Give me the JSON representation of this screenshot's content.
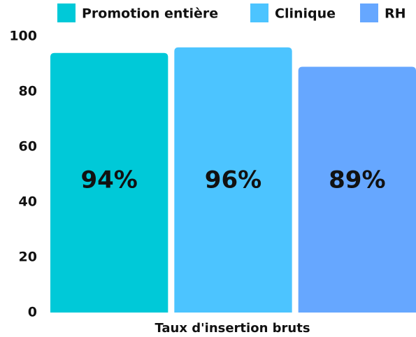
{
  "chart_data": {
    "type": "bar",
    "categories": [
      "Taux d'insertion bruts"
    ],
    "series": [
      {
        "name": "Promotion entière",
        "color": "#00c9d8",
        "values": [
          94
        ],
        "value_labels": [
          "94%"
        ]
      },
      {
        "name": "Clinique",
        "color": "#4cc4ff",
        "values": [
          96
        ],
        "value_labels": [
          "96%"
        ]
      },
      {
        "name": "RH",
        "color": "#66a7ff",
        "values": [
          89
        ],
        "value_labels": [
          "89%"
        ]
      }
    ],
    "ylim": [
      0,
      100
    ],
    "yticks": [
      0,
      20,
      40,
      60,
      80,
      100
    ],
    "grid": false,
    "legend": "top"
  }
}
